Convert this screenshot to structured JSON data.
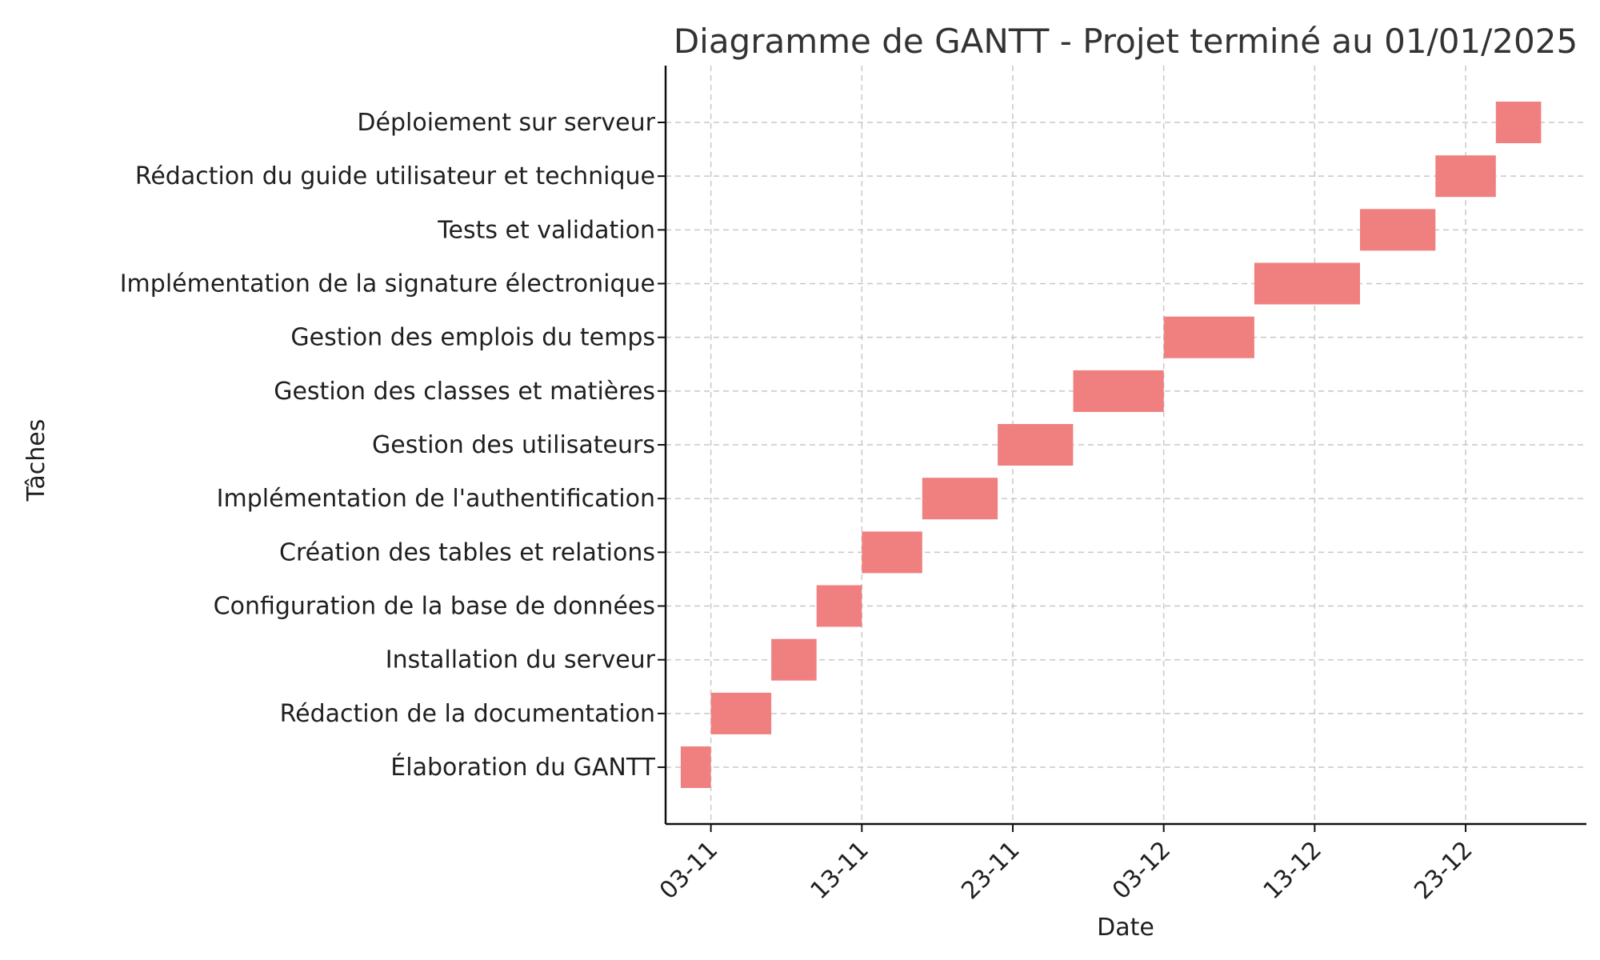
{
  "chart_data": {
    "type": "gantt",
    "title": "Diagramme de GANTT - Projet terminé au 01/01/2025",
    "xlabel": "Date",
    "ylabel": "Tâches",
    "x_axis": {
      "kind": "date",
      "range": [
        "2024-10-31",
        "2024-12-31"
      ],
      "ticks": [
        {
          "date": "2024-11-03",
          "label": "03-11"
        },
        {
          "date": "2024-11-13",
          "label": "13-11"
        },
        {
          "date": "2024-11-23",
          "label": "23-11"
        },
        {
          "date": "2024-12-03",
          "label": "03-12"
        },
        {
          "date": "2024-12-13",
          "label": "13-12"
        },
        {
          "date": "2024-12-23",
          "label": "23-12"
        }
      ]
    },
    "grid": true,
    "bar_color": "#f08080",
    "tasks": [
      {
        "name": "Élaboration du GANTT",
        "start": "2024-11-01",
        "end": "2024-11-03"
      },
      {
        "name": "Rédaction de la documentation",
        "start": "2024-11-03",
        "end": "2024-11-07"
      },
      {
        "name": "Installation du serveur",
        "start": "2024-11-07",
        "end": "2024-11-10"
      },
      {
        "name": "Configuration de la base de données",
        "start": "2024-11-10",
        "end": "2024-11-13"
      },
      {
        "name": "Création des tables et relations",
        "start": "2024-11-13",
        "end": "2024-11-17"
      },
      {
        "name": "Implémentation de l'authentification",
        "start": "2024-11-17",
        "end": "2024-11-22"
      },
      {
        "name": "Gestion des utilisateurs",
        "start": "2024-11-22",
        "end": "2024-11-27"
      },
      {
        "name": "Gestion des classes et matières",
        "start": "2024-11-27",
        "end": "2024-12-03"
      },
      {
        "name": "Gestion des emplois du temps",
        "start": "2024-12-03",
        "end": "2024-12-09"
      },
      {
        "name": "Implémentation de la signature électronique",
        "start": "2024-12-09",
        "end": "2024-12-16"
      },
      {
        "name": "Tests et validation",
        "start": "2024-12-16",
        "end": "2024-12-21"
      },
      {
        "name": "Rédaction du guide utilisateur et technique",
        "start": "2024-12-21",
        "end": "2024-12-25"
      },
      {
        "name": "Déploiement sur serveur",
        "start": "2024-12-25",
        "end": "2024-12-28"
      }
    ]
  }
}
